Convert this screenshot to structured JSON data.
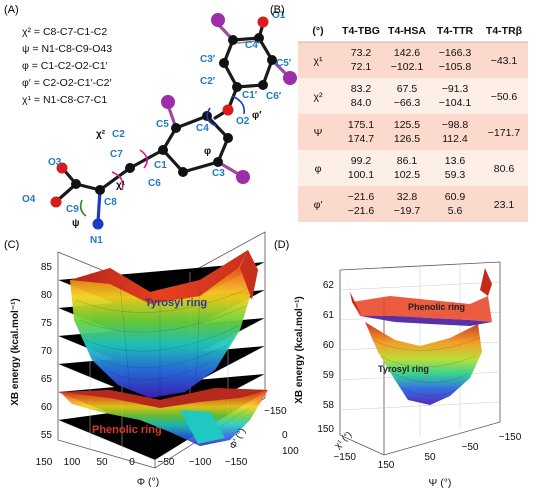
{
  "panel_a": {
    "label": "(A)",
    "equations": [
      "χ² = C8-C7-C1-C2",
      "ψ = N1-C8-C9-O43",
      "φ = C1-C2-O2-C1′",
      "φ′ = C2-O2-C1′-C2′",
      "χ¹ = N1-C8-C7-C1"
    ],
    "atoms": [
      "O1",
      "C4′",
      "C3′",
      "C5′",
      "C2′",
      "C6′",
      "C1′",
      "O2",
      "C5",
      "C4",
      "C2",
      "C7",
      "C1",
      "C3",
      "C6",
      "O3",
      "C9",
      "C8",
      "O4",
      "N1"
    ],
    "angle_labels": [
      "χ²",
      "χ¹",
      "ψ",
      "φ",
      "φ′"
    ]
  },
  "panel_b": {
    "label": "(B)",
    "columns": [
      "(°)",
      "T4-TBG",
      "T4-HSA",
      "T4-TTR",
      "T4-TRβ"
    ],
    "rows": [
      {
        "name": "χ¹",
        "sup": "1",
        "base": "χ",
        "vals": [
          [
            "73.2",
            "72.1"
          ],
          [
            "142.6",
            "−102.1"
          ],
          [
            "−166.3",
            "−105.8"
          ]
        ],
        "trb": "−43.1"
      },
      {
        "name": "χ²",
        "sup": "2",
        "base": "χ",
        "vals": [
          [
            "83.2",
            "84.0"
          ],
          [
            "67.5",
            "−66.3"
          ],
          [
            "−91.3",
            "−104.1"
          ]
        ],
        "trb": "−50.6"
      },
      {
        "name": "Ψ",
        "sup": "",
        "base": "Ψ",
        "vals": [
          [
            "175.1",
            "174.7"
          ],
          [
            "125.5",
            "126.5"
          ],
          [
            "−98.8",
            "112.4"
          ]
        ],
        "trb": "−171.7"
      },
      {
        "name": "φ",
        "sup": "",
        "base": "φ",
        "vals": [
          [
            "99.2",
            "100.1"
          ],
          [
            "86.1",
            "102.5"
          ],
          [
            "13.6",
            "59.3"
          ]
        ],
        "trb": "80.6"
      },
      {
        "name": "φ′",
        "sup": "",
        "base": "φ′",
        "vals": [
          [
            "−21.6",
            "−21.6"
          ],
          [
            "32.8",
            "−19.7"
          ],
          [
            "60.9",
            "5.6"
          ]
        ],
        "trb": "23.1"
      }
    ],
    "colors": {
      "row_a": "#fbd9cc",
      "row_b": "#fdeee8",
      "header": "#ffffff",
      "text": "#111111"
    }
  },
  "panel_c": {
    "label": "(C)",
    "ylabel": "XB energy (kcal.mol⁻¹)",
    "yticks": [
      "85",
      "80",
      "75",
      "70",
      "65",
      "60",
      "55"
    ],
    "xlabel": "Φ (°)",
    "xticks": [
      "150",
      "100",
      "50",
      "0",
      "−50",
      "−100",
      "−150"
    ],
    "zlabel": "Φ′ (°)",
    "zticks": [
      "−150",
      "0",
      "100"
    ],
    "labels": {
      "top": "Tyrosyl ring",
      "bottom": "Phenolic ring"
    },
    "label_colors": {
      "top": "#2b3a8f",
      "bottom": "#d9372a"
    }
  },
  "panel_d": {
    "label": "(D)",
    "ylabel": "XB energy (kcal.mol⁻¹)",
    "yticks": [
      "62",
      "61",
      "60",
      "59",
      "58"
    ],
    "xlabel": "Ψ (°)",
    "xticks": [
      "150",
      "50",
      "−50",
      "−150"
    ],
    "zlabel": "χ¹ (°)",
    "zticks": [
      "150",
      "−150"
    ],
    "labels": {
      "top": "Phenolic ring",
      "bottom": "Tyrosyl ring"
    }
  }
}
